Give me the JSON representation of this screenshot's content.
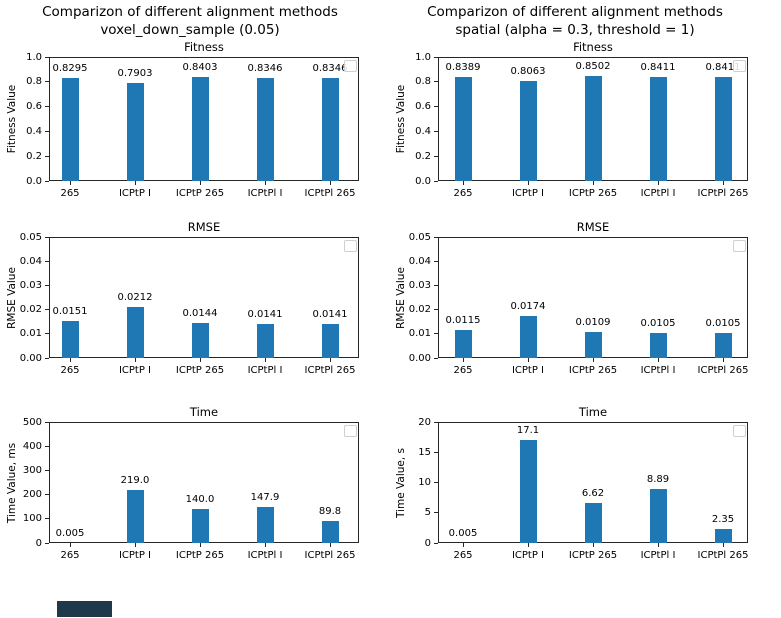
{
  "columns": [
    {
      "line1": "Comparizon of different alignment methods",
      "line2": "voxel_down_sample (0.05)"
    },
    {
      "line1": "Comparizon of different alignment methods",
      "line2": "spatial (alpha = 0.3, threshold = 1)"
    }
  ],
  "colors": {
    "bar": "#1f77b4",
    "spine": "#262626",
    "text": "#000000",
    "legend_border": "#cfcfcf",
    "artifact": "#1e3a4a"
  },
  "chart_data": [
    {
      "type": "bar",
      "title": "Fitness",
      "ylabel": "Fitness Value",
      "categories": [
        "265",
        "ICPtP I",
        "ICPtP 265",
        "ICPtPl I",
        "ICPtPl 265"
      ],
      "values": [
        0.8295,
        0.7903,
        0.8403,
        0.8346,
        0.8346
      ],
      "value_labels": [
        "0.8295",
        "0.7903",
        "0.8403",
        "0.8346",
        "0.8346"
      ],
      "ylim": [
        0,
        1.0
      ],
      "yticks": [
        "0.0",
        "0.2",
        "0.4",
        "0.6",
        "0.8",
        "1.0"
      ],
      "grid": false,
      "legend_position": "upper right (empty)"
    },
    {
      "type": "bar",
      "title": "Fitness",
      "ylabel": "Fitness Value",
      "categories": [
        "265",
        "ICPtP I",
        "ICPtP 265",
        "ICPtPl I",
        "ICPtPl 265"
      ],
      "values": [
        0.8389,
        0.8063,
        0.8502,
        0.8411,
        0.8411
      ],
      "value_labels": [
        "0.8389",
        "0.8063",
        "0.8502",
        "0.8411",
        "0.8411"
      ],
      "ylim": [
        0,
        1.0
      ],
      "yticks": [
        "0.0",
        "0.2",
        "0.4",
        "0.6",
        "0.8",
        "1.0"
      ],
      "grid": false,
      "legend_position": "upper right (empty)"
    },
    {
      "type": "bar",
      "title": "RMSE",
      "ylabel": "RMSE Value",
      "categories": [
        "265",
        "ICPtP I",
        "ICPtP 265",
        "ICPtPl I",
        "ICPtPl 265"
      ],
      "values": [
        0.0151,
        0.0212,
        0.0144,
        0.0141,
        0.0141
      ],
      "value_labels": [
        "0.0151",
        "0.0212",
        "0.0144",
        "0.0141",
        "0.0141"
      ],
      "ylim": [
        0,
        0.05
      ],
      "yticks": [
        "0.00",
        "0.01",
        "0.02",
        "0.03",
        "0.04",
        "0.05"
      ],
      "grid": false,
      "legend_position": "upper right (empty)"
    },
    {
      "type": "bar",
      "title": "RMSE",
      "ylabel": "RMSE Value",
      "categories": [
        "265",
        "ICPtP I",
        "ICPtP 265",
        "ICPtPl I",
        "ICPtPl 265"
      ],
      "values": [
        0.0115,
        0.0174,
        0.0109,
        0.0105,
        0.0105
      ],
      "value_labels": [
        "0.0115",
        "0.0174",
        "0.0109",
        "0.0105",
        "0.0105"
      ],
      "ylim": [
        0,
        0.05
      ],
      "yticks": [
        "0.00",
        "0.01",
        "0.02",
        "0.03",
        "0.04",
        "0.05"
      ],
      "grid": false,
      "legend_position": "upper right (empty)"
    },
    {
      "type": "bar",
      "title": "Time",
      "ylabel": "Time Value, ms",
      "categories": [
        "265",
        "ICPtP I",
        "ICPtP 265",
        "ICPtPl I",
        "ICPtPl 265"
      ],
      "values": [
        0.005,
        219.0,
        140.0,
        147.9,
        89.8
      ],
      "value_labels": [
        "0.005",
        "219.0",
        "140.0",
        "147.9",
        "89.8"
      ],
      "ylim": [
        0,
        500
      ],
      "yticks": [
        "0",
        "100",
        "200",
        "300",
        "400",
        "500"
      ],
      "grid": false,
      "legend_position": "upper right (empty)"
    },
    {
      "type": "bar",
      "title": "Time",
      "ylabel": "Time Value, s",
      "categories": [
        "265",
        "ICPtP I",
        "ICPtP 265",
        "ICPtPl I",
        "ICPtPl 265"
      ],
      "values": [
        0.005,
        17.1,
        6.62,
        8.89,
        2.35
      ],
      "value_labels": [
        "0.005",
        "17.1",
        "6.62",
        "8.89",
        "2.35"
      ],
      "ylim": [
        0,
        20
      ],
      "yticks": [
        "0",
        "5",
        "10",
        "15",
        "20"
      ],
      "grid": false,
      "legend_position": "upper right (empty)"
    }
  ]
}
